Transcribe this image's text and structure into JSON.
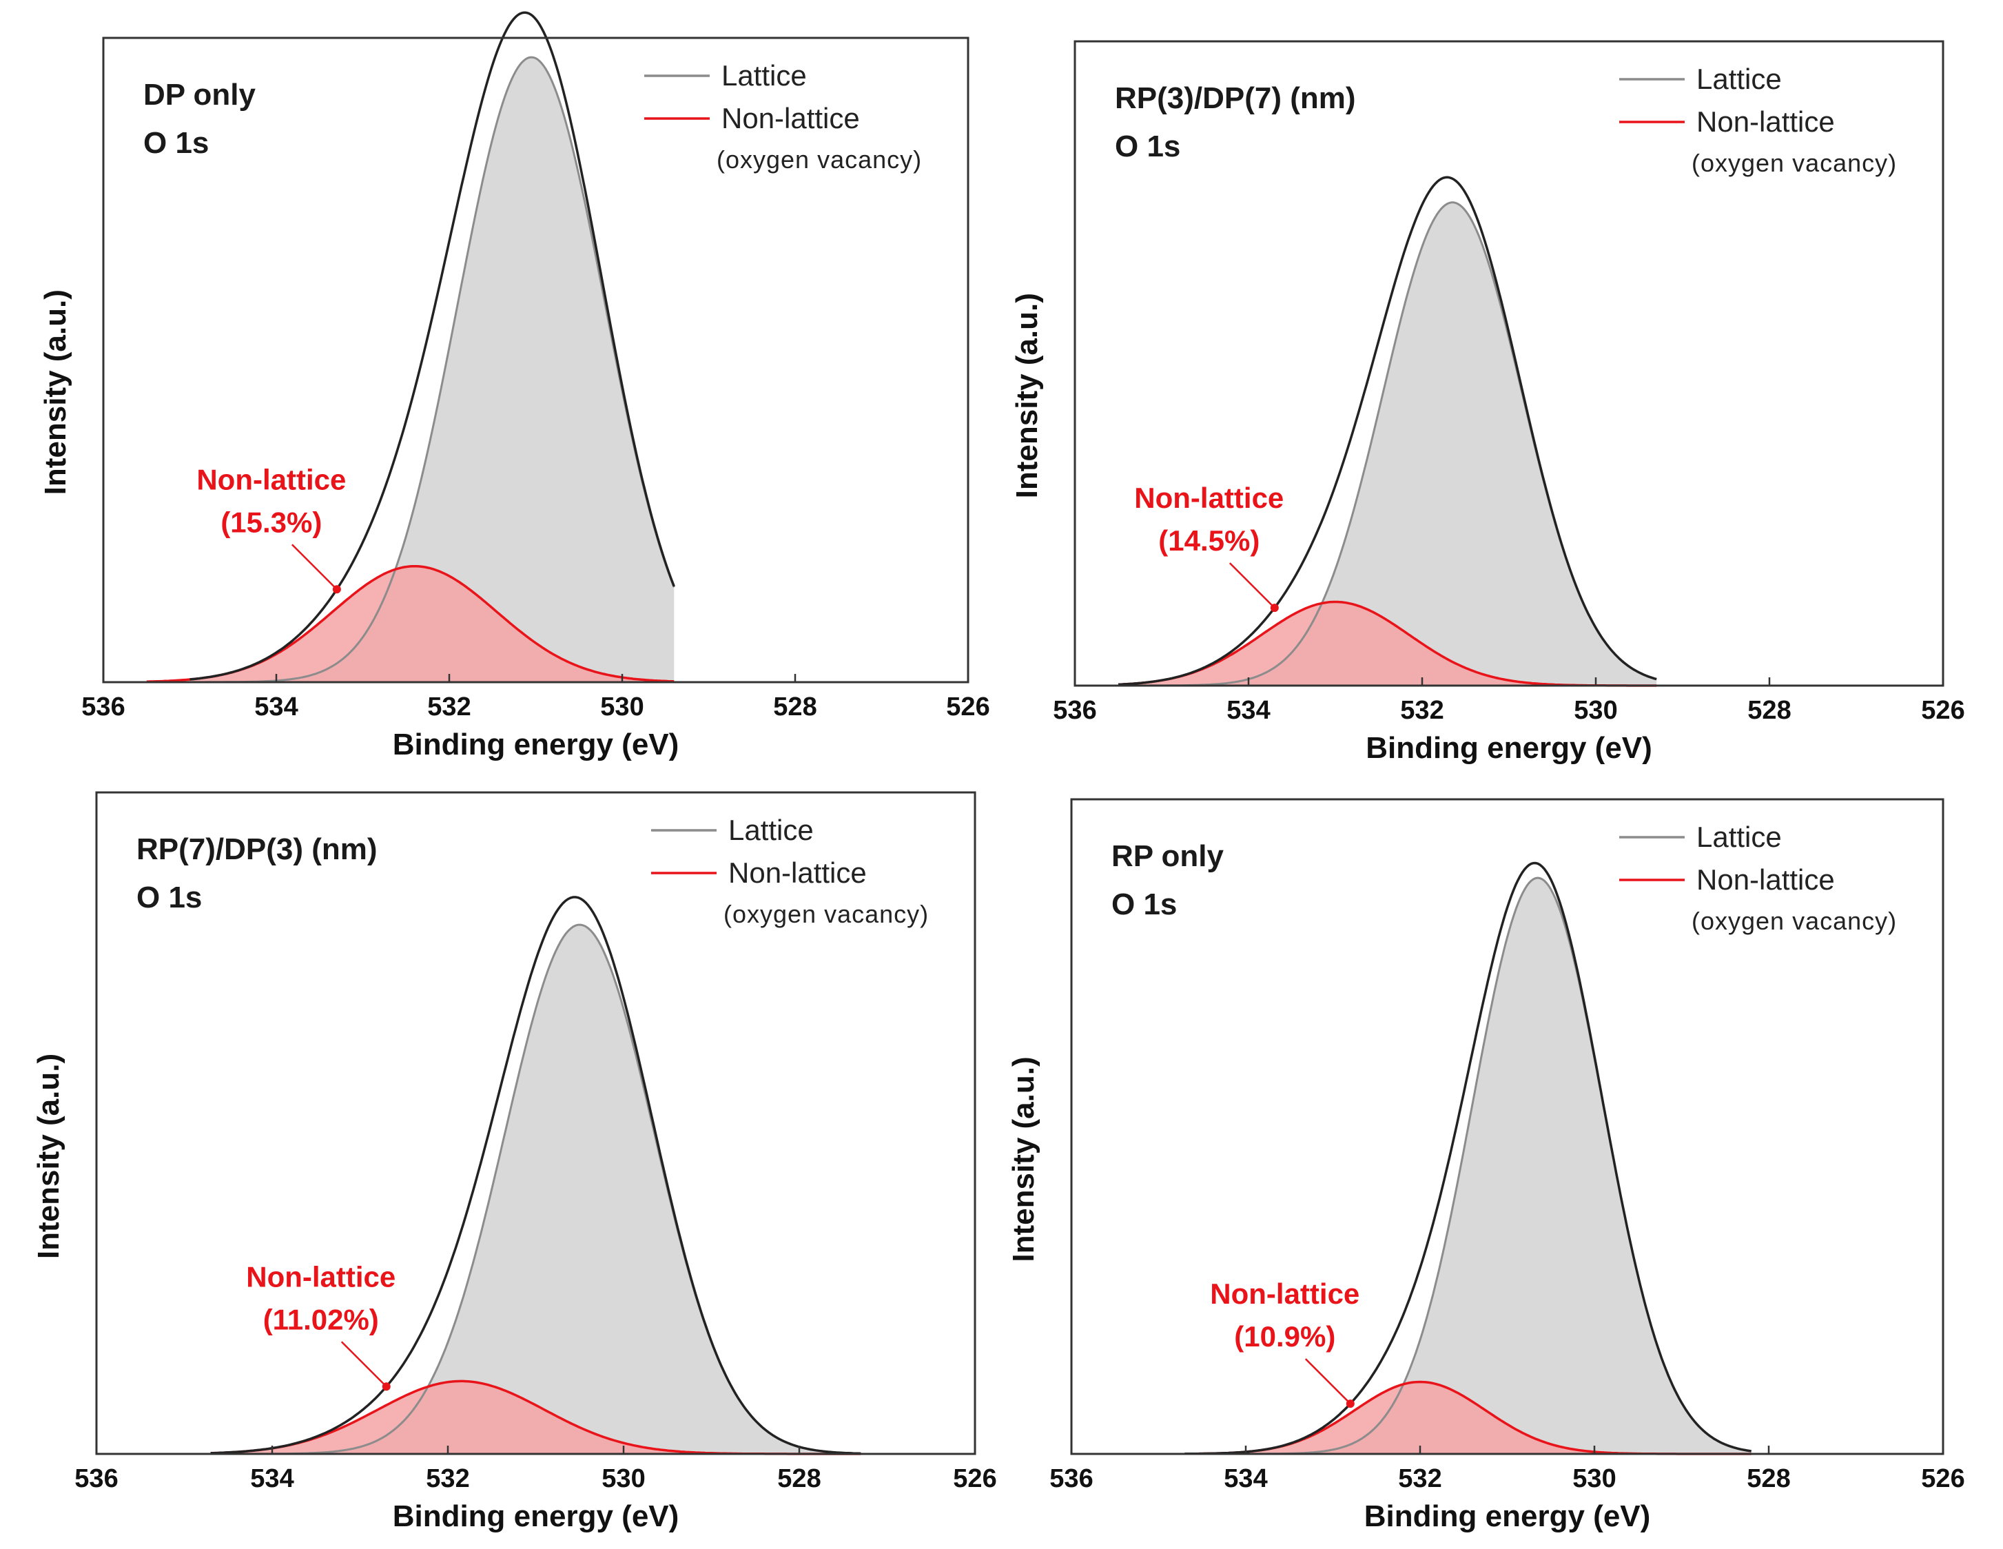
{
  "figure": {
    "chart_data": [
      {
        "type": "line",
        "title": "DP only",
        "subtitle": "O 1s",
        "xlabel": "Binding energy (eV)",
        "ylabel": "Intensity (a.u.)",
        "xlim": [
          536,
          526
        ],
        "ylim": [
          0,
          1.0
        ],
        "xticks": [
          "536",
          "534",
          "532",
          "530",
          "528",
          "526"
        ],
        "legend": {
          "placement": "top-right",
          "entries": [
            "Lattice",
            "Non-lattice"
          ],
          "note": "(oxygen vacancy)"
        },
        "annotation": {
          "label": "Non-lattice",
          "value": "(15.3%)",
          "arrow_to_ev": 533.3
        },
        "series": [
          {
            "name": "Lattice",
            "center": 531.05,
            "height": 0.97,
            "width": 0.85,
            "range": [
              535.0,
              529.4
            ]
          },
          {
            "name": "Non-lattice",
            "center": 532.4,
            "height": 0.18,
            "width": 0.95,
            "range": [
              535.5,
              529.4
            ]
          }
        ],
        "colors": {
          "lattice_line": "#8c8c8c",
          "lattice_fill": "#d9d9d9",
          "nonlattice_line": "#e8141a",
          "nonlattice_fill": "#f4a3a6",
          "envelope": "#222222"
        }
      },
      {
        "type": "line",
        "title": "RP(3)/DP(7) (nm)",
        "subtitle": "O 1s",
        "xlabel": "Binding energy (eV)",
        "ylabel": "Intensity (a.u.)",
        "xlim": [
          536,
          526
        ],
        "ylim": [
          0,
          1.0
        ],
        "xticks": [
          "536",
          "534",
          "532",
          "530",
          "528",
          "526"
        ],
        "legend": {
          "placement": "top-right",
          "entries": [
            "Lattice",
            "Non-lattice"
          ],
          "note": "(oxygen vacancy)"
        },
        "annotation": {
          "label": "Non-lattice",
          "value": "(14.5%)",
          "arrow_to_ev": 533.7
        },
        "series": [
          {
            "name": "Lattice",
            "center": 531.65,
            "height": 0.75,
            "width": 0.8,
            "range": [
              535.5,
              529.3
            ]
          },
          {
            "name": "Non-lattice",
            "center": 533.0,
            "height": 0.13,
            "width": 0.85,
            "range": [
              535.5,
              529.3
            ]
          }
        ],
        "colors": {
          "lattice_line": "#8c8c8c",
          "lattice_fill": "#d9d9d9",
          "nonlattice_line": "#e8141a",
          "nonlattice_fill": "#f4a3a6",
          "envelope": "#222222"
        }
      },
      {
        "type": "line",
        "title": "RP(7)/DP(3) (nm)",
        "subtitle": "O 1s",
        "xlabel": "Binding energy (eV)",
        "ylabel": "Intensity (a.u.)",
        "xlim": [
          536,
          526
        ],
        "ylim": [
          0,
          1.0
        ],
        "xticks": [
          "536",
          "534",
          "532",
          "530",
          "528",
          "526"
        ],
        "legend": {
          "placement": "top-right",
          "entries": [
            "Lattice",
            "Non-lattice"
          ],
          "note": "(oxygen vacancy)"
        },
        "annotation": {
          "label": "Non-lattice",
          "value": "(11.02%)",
          "arrow_to_ev": 532.7
        },
        "series": [
          {
            "name": "Lattice",
            "center": 530.5,
            "height": 0.8,
            "width": 0.85,
            "range": [
              534.7,
              527.3
            ]
          },
          {
            "name": "Non-lattice",
            "center": 531.85,
            "height": 0.11,
            "width": 0.95,
            "range": [
              534.7,
              527.3
            ]
          }
        ],
        "colors": {
          "lattice_line": "#8c8c8c",
          "lattice_fill": "#d9d9d9",
          "nonlattice_line": "#e8141a",
          "nonlattice_fill": "#f4a3a6",
          "envelope": "#222222"
        }
      },
      {
        "type": "line",
        "title": "RP only",
        "subtitle": "O 1s",
        "xlabel": "Binding energy (eV)",
        "ylabel": "Intensity (a.u.)",
        "xlim": [
          536,
          526
        ],
        "ylim": [
          0,
          1.0
        ],
        "xticks": [
          "536",
          "534",
          "532",
          "530",
          "528",
          "526"
        ],
        "legend": {
          "placement": "top-right",
          "entries": [
            "Lattice",
            "Non-lattice"
          ],
          "note": "(oxygen vacancy)"
        },
        "annotation": {
          "label": "Non-lattice",
          "value": "(10.9%)",
          "arrow_to_ev": 532.8
        },
        "series": [
          {
            "name": "Lattice",
            "center": 530.65,
            "height": 0.88,
            "width": 0.75,
            "range": [
              534.7,
              528.2
            ]
          },
          {
            "name": "Non-lattice",
            "center": 532.0,
            "height": 0.11,
            "width": 0.75,
            "range": [
              534.7,
              528.2
            ]
          }
        ],
        "colors": {
          "lattice_line": "#8c8c8c",
          "lattice_fill": "#d9d9d9",
          "nonlattice_line": "#e8141a",
          "nonlattice_fill": "#f4a3a6",
          "envelope": "#222222"
        }
      }
    ]
  }
}
